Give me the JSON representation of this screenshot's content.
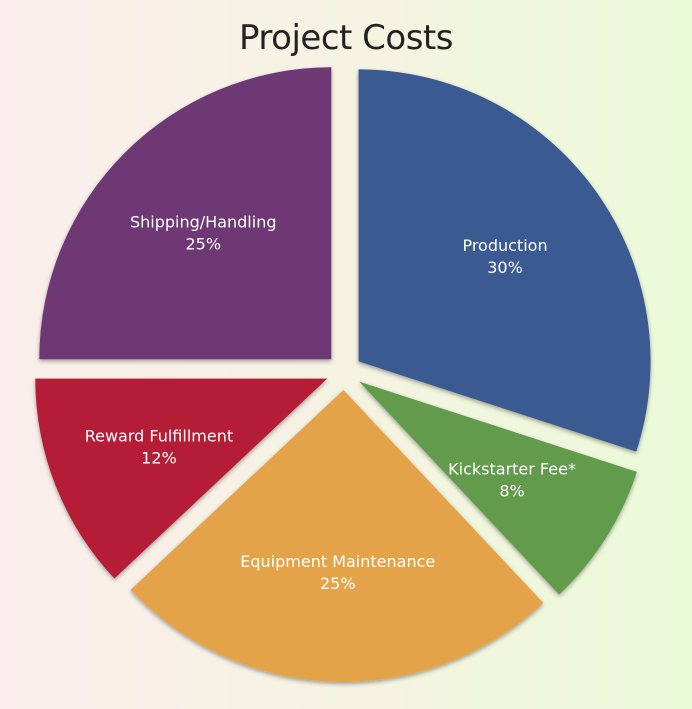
{
  "chart_data": {
    "type": "pie",
    "title": "Project Costs",
    "slices": [
      {
        "label": "Production",
        "value": 30,
        "value_label": "30%",
        "color": "#3a5a92"
      },
      {
        "label": "Kickstarter Fee*",
        "value": 8,
        "value_label": "8%",
        "color": "#629b4c"
      },
      {
        "label": "Equipment Maintenance",
        "value": 25,
        "value_label": "25%",
        "color": "#e4a34a"
      },
      {
        "label": "Reward Fulfillment",
        "value": 12,
        "value_label": "12%",
        "color": "#b51e36"
      },
      {
        "label": "Shipping/Handling",
        "value": 25,
        "value_label": "25%",
        "color": "#6e3875"
      }
    ],
    "legend": "none",
    "labels": "inside"
  }
}
